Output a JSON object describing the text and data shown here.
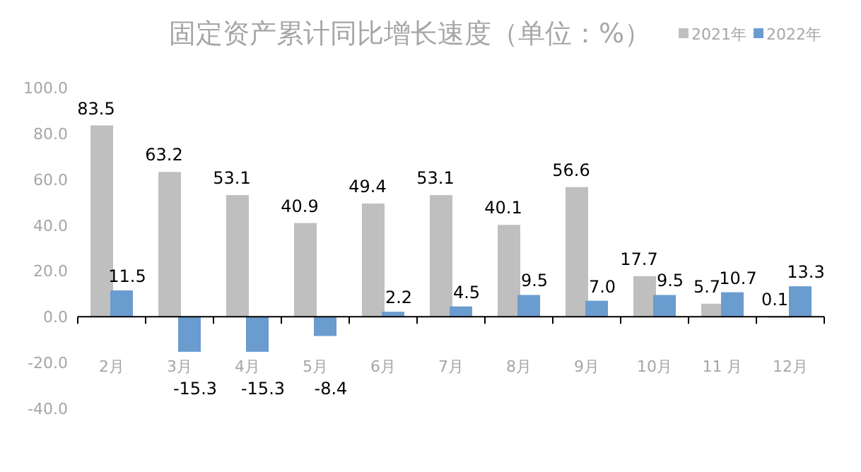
{
  "chart_data": {
    "type": "bar",
    "title": "固定资产累计同比增长速度（单位：%）",
    "legend": "top right",
    "categories": [
      "2月",
      "3月",
      "4月",
      "5月",
      "6月",
      "7月",
      "8月",
      "9月",
      "10月",
      "11 月",
      "12月"
    ],
    "series": [
      {
        "name": "2021年",
        "color": "#bfbfbf",
        "values": [
          83.5,
          63.2,
          53.1,
          40.9,
          49.4,
          53.1,
          40.1,
          56.6,
          17.7,
          5.7,
          0.1
        ],
        "value_labels": [
          "83.5",
          "63.2",
          "53.1",
          "40.9",
          "49.4",
          "53.1",
          "40.1",
          "56.6",
          "17.7",
          "5.7",
          "0.1"
        ]
      },
      {
        "name": "2022年",
        "color": "#6a9ccf",
        "values": [
          11.5,
          -15.3,
          -15.3,
          -8.4,
          2.2,
          4.5,
          9.5,
          7.0,
          9.5,
          10.7,
          13.3
        ],
        "value_labels": [
          "11.5",
          "-15.3",
          "-15.3",
          "-8.4",
          "2.2",
          "4.5",
          "9.5",
          "7.0",
          "9.5",
          "10.7",
          "13.3"
        ]
      }
    ],
    "ylim": [
      -40,
      100
    ],
    "yticks": [
      {
        "value": -40,
        "label": "-40.0"
      },
      {
        "value": -20,
        "label": "-20.0"
      },
      {
        "value": 0,
        "label": "0.0"
      },
      {
        "value": 20,
        "label": "20.0"
      },
      {
        "value": 40,
        "label": "40.0"
      },
      {
        "value": 60,
        "label": "60.0"
      },
      {
        "value": 80,
        "label": "80.0"
      },
      {
        "value": 100,
        "label": "100.0"
      }
    ]
  }
}
